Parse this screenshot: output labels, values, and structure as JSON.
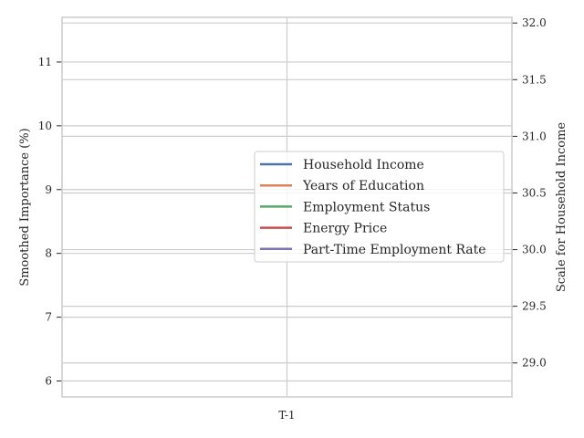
{
  "chart_data": {
    "type": "line",
    "categories": [
      "T-1"
    ],
    "ylabel": "Smoothed Importance (%)",
    "ylabel_right": "Scale for Household Income",
    "y_ticks": [
      6,
      7,
      8,
      9,
      10,
      11
    ],
    "ylim": [
      5.75,
      11.7
    ],
    "y2_ticks": [
      29.0,
      29.5,
      30.0,
      30.5,
      31.0,
      31.5,
      32.0
    ],
    "y2_tick_labels": [
      "29.0",
      "29.5",
      "30.0",
      "30.5",
      "31.0",
      "31.5",
      "32.0"
    ],
    "y2lim": [
      28.7,
      32.05
    ],
    "grid": true,
    "legend_position": "center-right",
    "series": [
      {
        "name": "Household Income",
        "color": "#4c72b0",
        "axis": "right"
      },
      {
        "name": "Years of Education",
        "color": "#dd8452",
        "axis": "left"
      },
      {
        "name": "Employment Status",
        "color": "#55a868",
        "axis": "left"
      },
      {
        "name": "Energy Price",
        "color": "#c44e52",
        "axis": "left"
      },
      {
        "name": "Part-Time Employment Rate",
        "color": "#8172b3",
        "axis": "left"
      }
    ]
  }
}
